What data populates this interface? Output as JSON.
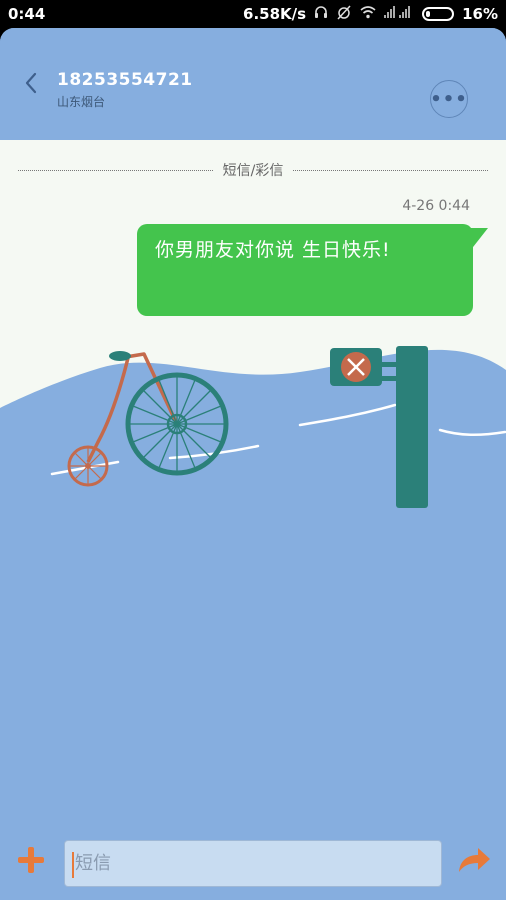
{
  "status_bar": {
    "time": "0:44",
    "network_speed": "6.58K/s",
    "icons": [
      "headphones-icon",
      "alarm-off-icon",
      "wifi-icon",
      "signal-icon"
    ],
    "battery": "16%",
    "battery_level": 0.16
  },
  "header": {
    "contact_number": "18253554721",
    "contact_location": "山东烟台",
    "more_label": "•••"
  },
  "conversation": {
    "message_type": "短信/彩信",
    "timestamp": "4-26 0:44",
    "messages": [
      {
        "text": "你男朋友对你说  生日快乐!"
      }
    ]
  },
  "composer": {
    "placeholder": "短信",
    "value": ""
  },
  "colors": {
    "background": "#86aedf",
    "bubble": "#44c44d",
    "accent": "#e77a3a",
    "sign_post": "#2b8079"
  }
}
